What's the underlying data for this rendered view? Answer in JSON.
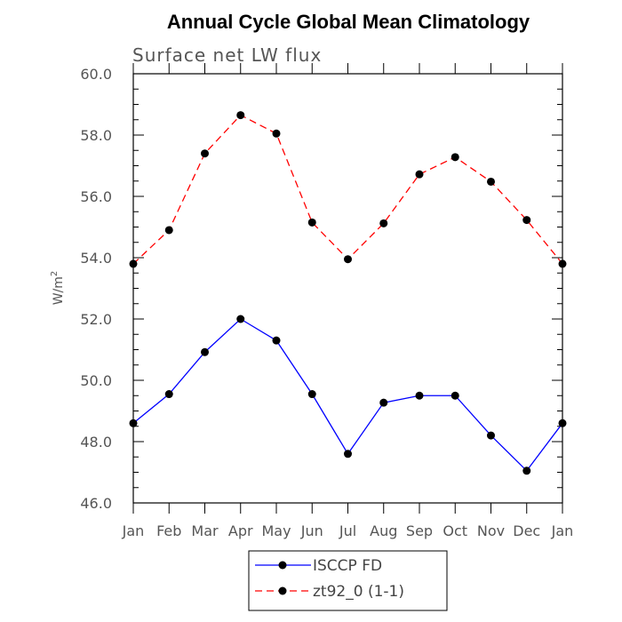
{
  "chart_data": {
    "type": "line",
    "title": "Annual Cycle Global Mean Climatology",
    "subtitle": "Surface net LW flux",
    "ylabel": "W/m",
    "ylabel_superscript": "2",
    "categories": [
      "Jan",
      "Feb",
      "Mar",
      "Apr",
      "May",
      "Jun",
      "Jul",
      "Aug",
      "Sep",
      "Oct",
      "Nov",
      "Dec",
      "Jan"
    ],
    "ylim": [
      46.0,
      60.0
    ],
    "yticks": [
      "46.0",
      "48.0",
      "50.0",
      "52.0",
      "54.0",
      "56.0",
      "58.0",
      "60.0"
    ],
    "series": [
      {
        "name": "ISCCP FD",
        "color": "#0000ff",
        "dash": "solid",
        "values": [
          48.6,
          49.55,
          50.92,
          52.0,
          51.3,
          49.55,
          47.6,
          49.27,
          49.5,
          49.5,
          48.2,
          47.05,
          48.6
        ]
      },
      {
        "name": "zt92_0 (1-1)",
        "color": "#ff0000",
        "dash": "dashed",
        "values": [
          53.8,
          54.9,
          57.4,
          58.65,
          58.05,
          55.15,
          53.95,
          55.12,
          56.72,
          57.28,
          56.48,
          55.23,
          53.8
        ]
      }
    ]
  }
}
